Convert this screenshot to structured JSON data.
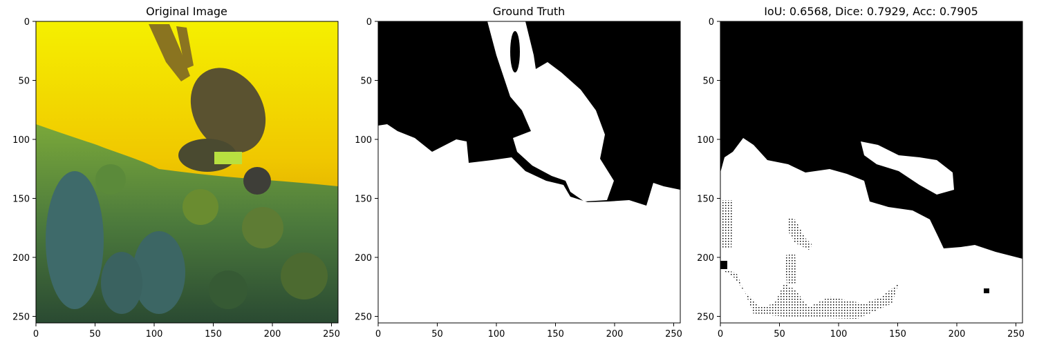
{
  "panels": [
    {
      "title": "Original Image",
      "image": "underwater scuba diver over coral reef, strong yellow cast",
      "x_ticks": [
        0,
        50,
        100,
        150,
        200,
        250
      ],
      "y_ticks": [
        0,
        50,
        100,
        150,
        200,
        250
      ],
      "x_range": [
        0,
        255
      ],
      "y_range": [
        0,
        255
      ]
    },
    {
      "title": "Ground Truth",
      "image": "binary segmentation mask (white = diver + reef, black = water)",
      "x_ticks": [
        0,
        50,
        100,
        150,
        200,
        250
      ],
      "y_ticks": [
        0,
        50,
        100,
        150,
        200,
        250
      ],
      "x_range": [
        0,
        255
      ],
      "y_range": [
        0,
        255
      ]
    },
    {
      "title": "IoU: 0.6568, Dice: 0.7929, Acc: 0.7905",
      "image": "predicted binary segmentation mask",
      "x_ticks": [
        0,
        50,
        100,
        150,
        200,
        250
      ],
      "y_ticks": [
        0,
        50,
        100,
        150,
        200,
        250
      ],
      "x_range": [
        0,
        255
      ],
      "y_range": [
        0,
        255
      ]
    }
  ],
  "colors": {
    "water_yellow": "#f2e800",
    "water_orange": "#e8a800",
    "reef_green": "#2e5a3a",
    "mask_white": "#ffffff",
    "mask_black": "#000000"
  }
}
